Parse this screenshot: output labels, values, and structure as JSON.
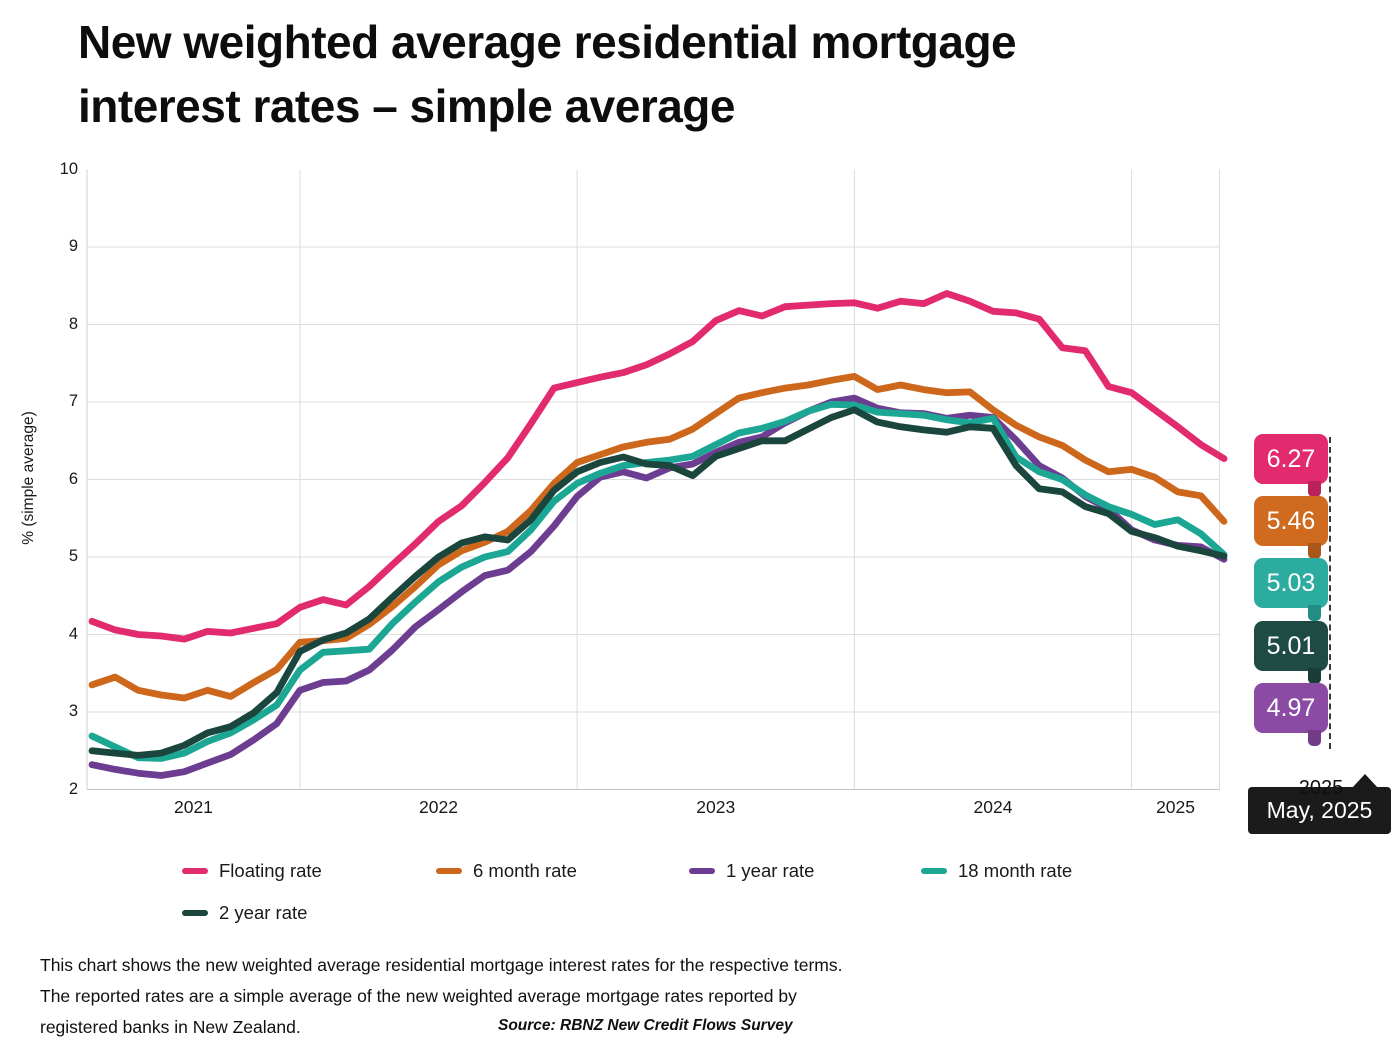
{
  "title": {
    "line1": "New weighted average residential mortgage",
    "line2": "interest rates – simple average"
  },
  "y_axis": {
    "title": "% (simple average)",
    "ticks": [
      "10",
      "9",
      "8",
      "7",
      "6",
      "5",
      "4",
      "3",
      "2"
    ],
    "min": 2,
    "max": 10
  },
  "x_axis": {
    "year_labels": [
      "2021",
      "2022",
      "2023",
      "2024",
      "2025"
    ]
  },
  "chart_data": {
    "type": "line",
    "title": "New weighted average residential mortgage interest rates – simple average",
    "ylabel": "% (simple average)",
    "ylim": [
      2,
      10
    ],
    "grid": true,
    "legend_position": "bottom",
    "x_frequency": "monthly",
    "x": [
      "2021-04",
      "2021-05",
      "2021-06",
      "2021-07",
      "2021-08",
      "2021-09",
      "2021-10",
      "2021-11",
      "2021-12",
      "2022-01",
      "2022-02",
      "2022-03",
      "2022-04",
      "2022-05",
      "2022-06",
      "2022-07",
      "2022-08",
      "2022-09",
      "2022-10",
      "2022-11",
      "2022-12",
      "2023-01",
      "2023-02",
      "2023-03",
      "2023-04",
      "2023-05",
      "2023-06",
      "2023-07",
      "2023-08",
      "2023-09",
      "2023-10",
      "2023-11",
      "2023-12",
      "2024-01",
      "2024-02",
      "2024-03",
      "2024-04",
      "2024-05",
      "2024-06",
      "2024-07",
      "2024-08",
      "2024-09",
      "2024-10",
      "2024-11",
      "2024-12",
      "2025-01",
      "2025-02",
      "2025-03",
      "2025-04",
      "2025-05"
    ],
    "series": [
      {
        "name": "Floating rate",
        "color": "#E22A6E",
        "latest": 6.27,
        "values": [
          4.17,
          4.06,
          4.0,
          3.98,
          3.94,
          4.04,
          4.02,
          4.08,
          4.14,
          4.35,
          4.45,
          4.38,
          4.62,
          4.9,
          5.17,
          5.46,
          5.66,
          5.96,
          6.28,
          6.72,
          7.18,
          7.25,
          7.32,
          7.38,
          7.48,
          7.62,
          7.78,
          8.05,
          8.18,
          8.11,
          8.23,
          8.25,
          8.27,
          8.28,
          8.21,
          8.3,
          8.27,
          8.4,
          8.3,
          8.17,
          8.15,
          8.07,
          7.7,
          7.66,
          7.2,
          7.12,
          6.9,
          6.68,
          6.45,
          6.27
        ]
      },
      {
        "name": "6 month rate",
        "color": "#CC671C",
        "latest": 5.46,
        "values": [
          3.35,
          3.45,
          3.28,
          3.22,
          3.18,
          3.28,
          3.2,
          3.38,
          3.55,
          3.9,
          3.92,
          3.95,
          4.13,
          4.36,
          4.62,
          4.9,
          5.08,
          5.19,
          5.33,
          5.6,
          5.95,
          6.22,
          6.32,
          6.42,
          6.48,
          6.52,
          6.65,
          6.85,
          7.05,
          7.12,
          7.18,
          7.22,
          7.28,
          7.33,
          7.16,
          7.22,
          7.16,
          7.12,
          7.13,
          6.9,
          6.7,
          6.55,
          6.44,
          6.25,
          6.1,
          6.13,
          6.03,
          5.84,
          5.79,
          5.46
        ]
      },
      {
        "name": "1 year rate",
        "color": "#6C3D91",
        "latest": 4.97,
        "values": [
          2.32,
          2.26,
          2.21,
          2.18,
          2.23,
          2.34,
          2.45,
          2.64,
          2.85,
          3.28,
          3.38,
          3.4,
          3.54,
          3.8,
          4.1,
          4.32,
          4.55,
          4.76,
          4.83,
          5.07,
          5.4,
          5.78,
          6.03,
          6.1,
          6.02,
          6.15,
          6.2,
          6.35,
          6.48,
          6.55,
          6.73,
          6.88,
          7.0,
          7.05,
          6.92,
          6.86,
          6.85,
          6.79,
          6.83,
          6.8,
          6.51,
          6.18,
          6.02,
          5.78,
          5.62,
          5.35,
          5.22,
          5.15,
          5.13,
          4.97
        ]
      },
      {
        "name": "18 month rate",
        "color": "#1CA795",
        "latest": 5.03,
        "values": [
          2.69,
          2.55,
          2.41,
          2.4,
          2.47,
          2.62,
          2.73,
          2.9,
          3.09,
          3.54,
          3.77,
          3.79,
          3.81,
          4.14,
          4.42,
          4.68,
          4.87,
          5.0,
          5.07,
          5.35,
          5.72,
          5.95,
          6.08,
          6.18,
          6.22,
          6.25,
          6.3,
          6.45,
          6.6,
          6.66,
          6.75,
          6.88,
          6.97,
          6.96,
          6.87,
          6.85,
          6.83,
          6.77,
          6.73,
          6.79,
          6.29,
          6.1,
          6.0,
          5.8,
          5.65,
          5.55,
          5.42,
          5.48,
          5.3,
          5.03
        ]
      },
      {
        "name": "2 year rate",
        "color": "#1A463E",
        "latest": 5.01,
        "values": [
          2.5,
          2.47,
          2.44,
          2.47,
          2.57,
          2.73,
          2.81,
          2.99,
          3.25,
          3.78,
          3.93,
          4.02,
          4.2,
          4.48,
          4.75,
          5.0,
          5.18,
          5.26,
          5.22,
          5.48,
          5.86,
          6.1,
          6.22,
          6.29,
          6.2,
          6.18,
          6.05,
          6.3,
          6.4,
          6.5,
          6.5,
          6.65,
          6.8,
          6.9,
          6.74,
          6.68,
          6.64,
          6.61,
          6.68,
          6.66,
          6.18,
          5.88,
          5.84,
          5.65,
          5.56,
          5.33,
          5.25,
          5.14,
          5.08,
          5.01
        ]
      }
    ]
  },
  "value_bubbles": [
    {
      "value": "6.27",
      "color": "#E22A6E"
    },
    {
      "value": "5.46",
      "color": "#D06A1E"
    },
    {
      "value": "5.03",
      "color": "#2BAC9E"
    },
    {
      "value": "5.01",
      "color": "#1E4C44"
    },
    {
      "value": "4.97",
      "color": "#8B4AA3"
    }
  ],
  "tooltip": {
    "text": "May, 2025",
    "axis_label": "2025"
  },
  "footer": {
    "line1": "This chart shows the new weighted average residential mortgage interest rates for the respective terms.",
    "line2": "The reported rates are a simple average of the new weighted average mortgage rates reported by",
    "line3": "registered banks in New Zealand.",
    "source": "Source: RBNZ New Credit Flows Survey"
  }
}
